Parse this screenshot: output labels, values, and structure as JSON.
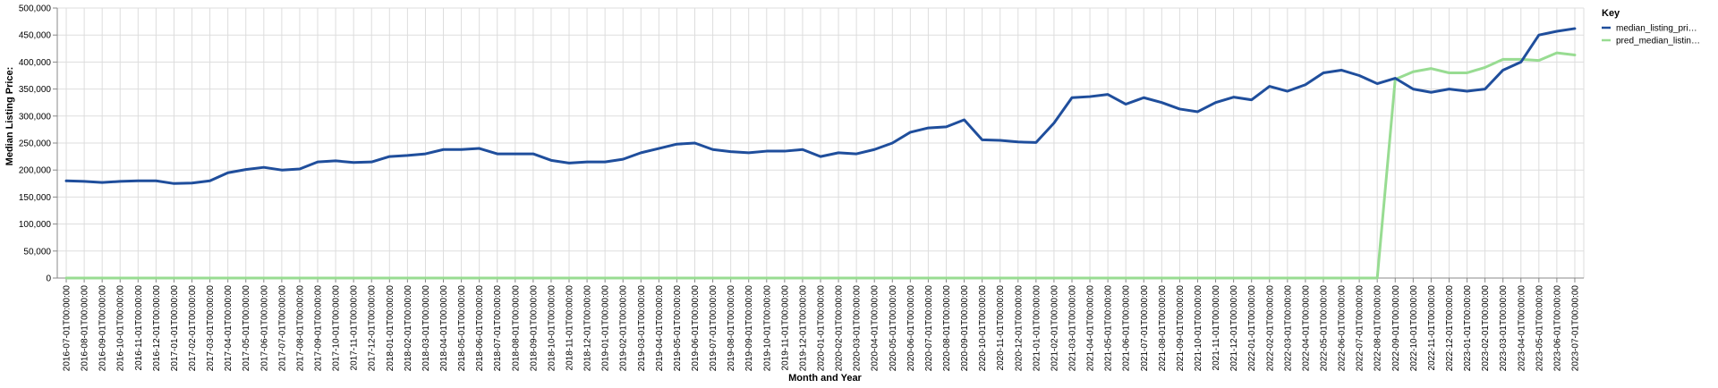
{
  "chart_data": {
    "type": "line",
    "xlabel": "Month and Year",
    "ylabel": "Median Listing Price:",
    "ylim": [
      0,
      500000
    ],
    "y_ticks": [
      0,
      50000,
      100000,
      150000,
      200000,
      250000,
      300000,
      350000,
      400000,
      450000,
      500000
    ],
    "y_tick_labels": [
      "0",
      "50,000",
      "100,000",
      "150,000",
      "200,000",
      "250,000",
      "300,000",
      "350,000",
      "400,000",
      "450,000",
      "500,000"
    ],
    "grid": true,
    "legend": {
      "title": "Key",
      "position": "top-right"
    },
    "x": [
      "2016-07-01T00:00:00",
      "2016-08-01T00:00:00",
      "2016-09-01T00:00:00",
      "2016-10-01T00:00:00",
      "2016-11-01T00:00:00",
      "2016-12-01T00:00:00",
      "2017-01-01T00:00:00",
      "2017-02-01T00:00:00",
      "2017-03-01T00:00:00",
      "2017-04-01T00:00:00",
      "2017-05-01T00:00:00",
      "2017-06-01T00:00:00",
      "2017-07-01T00:00:00",
      "2017-08-01T00:00:00",
      "2017-09-01T00:00:00",
      "2017-10-01T00:00:00",
      "2017-11-01T00:00:00",
      "2017-12-01T00:00:00",
      "2018-01-01T00:00:00",
      "2018-02-01T00:00:00",
      "2018-03-01T00:00:00",
      "2018-04-01T00:00:00",
      "2018-05-01T00:00:00",
      "2018-06-01T00:00:00",
      "2018-07-01T00:00:00",
      "2018-08-01T00:00:00",
      "2018-09-01T00:00:00",
      "2018-10-01T00:00:00",
      "2018-11-01T00:00:00",
      "2018-12-01T00:00:00",
      "2019-01-01T00:00:00",
      "2019-02-01T00:00:00",
      "2019-03-01T00:00:00",
      "2019-04-01T00:00:00",
      "2019-05-01T00:00:00",
      "2019-06-01T00:00:00",
      "2019-07-01T00:00:00",
      "2019-08-01T00:00:00",
      "2019-09-01T00:00:00",
      "2019-10-01T00:00:00",
      "2019-11-01T00:00:00",
      "2019-12-01T00:00:00",
      "2020-01-01T00:00:00",
      "2020-02-01T00:00:00",
      "2020-03-01T00:00:00",
      "2020-04-01T00:00:00",
      "2020-05-01T00:00:00",
      "2020-06-01T00:00:00",
      "2020-07-01T00:00:00",
      "2020-08-01T00:00:00",
      "2020-09-01T00:00:00",
      "2020-10-01T00:00:00",
      "2020-11-01T00:00:00",
      "2020-12-01T00:00:00",
      "2021-01-01T00:00:00",
      "2021-02-01T00:00:00",
      "2021-03-01T00:00:00",
      "2021-04-01T00:00:00",
      "2021-05-01T00:00:00",
      "2021-06-01T00:00:00",
      "2021-07-01T00:00:00",
      "2021-08-01T00:00:00",
      "2021-09-01T00:00:00",
      "2021-10-01T00:00:00",
      "2021-11-01T00:00:00",
      "2021-12-01T00:00:00",
      "2022-01-01T00:00:00",
      "2022-02-01T00:00:00",
      "2022-03-01T00:00:00",
      "2022-04-01T00:00:00",
      "2022-05-01T00:00:00",
      "2022-06-01T00:00:00",
      "2022-07-01T00:00:00",
      "2022-08-01T00:00:00",
      "2022-09-01T00:00:00",
      "2022-10-01T00:00:00",
      "2022-11-01T00:00:00",
      "2022-12-01T00:00:00",
      "2023-01-01T00:00:00",
      "2023-02-01T00:00:00",
      "2023-03-01T00:00:00",
      "2023-04-01T00:00:00",
      "2023-05-01T00:00:00",
      "2023-06-01T00:00:00",
      "2023-07-01T00:00:00"
    ],
    "series": [
      {
        "name": "median_listing_pri…",
        "color": "#1f4e9c",
        "values": [
          180000,
          179000,
          177000,
          179000,
          180000,
          180000,
          175000,
          176000,
          180000,
          195000,
          201000,
          205000,
          200000,
          202000,
          215000,
          217000,
          214000,
          215000,
          225000,
          227000,
          230000,
          238000,
          238000,
          240000,
          230000,
          230000,
          230000,
          218000,
          213000,
          215000,
          215000,
          220000,
          232000,
          240000,
          248000,
          250000,
          238000,
          234000,
          232000,
          235000,
          235000,
          238000,
          225000,
          232000,
          230000,
          238000,
          250000,
          270000,
          278000,
          280000,
          293000,
          256000,
          255000,
          252000,
          251000,
          287000,
          334000,
          336000,
          340000,
          322000,
          334000,
          325000,
          313000,
          308000,
          325000,
          335000,
          330000,
          355000,
          346000,
          358000,
          380000,
          385000,
          375000,
          360000,
          370000,
          350000,
          344000,
          350000,
          346000,
          350000,
          385000,
          400000,
          450000,
          457000,
          462000
        ]
      },
      {
        "name": "pred_median_listin…",
        "color": "#98dc92",
        "values": [
          0,
          0,
          0,
          0,
          0,
          0,
          0,
          0,
          0,
          0,
          0,
          0,
          0,
          0,
          0,
          0,
          0,
          0,
          0,
          0,
          0,
          0,
          0,
          0,
          0,
          0,
          0,
          0,
          0,
          0,
          0,
          0,
          0,
          0,
          0,
          0,
          0,
          0,
          0,
          0,
          0,
          0,
          0,
          0,
          0,
          0,
          0,
          0,
          0,
          0,
          0,
          0,
          0,
          0,
          0,
          0,
          0,
          0,
          0,
          0,
          0,
          0,
          0,
          0,
          0,
          0,
          0,
          0,
          0,
          0,
          0,
          0,
          0,
          0,
          368000,
          382000,
          388000,
          380000,
          380000,
          390000,
          405000,
          405000,
          403000,
          417000,
          413000
        ]
      }
    ]
  }
}
